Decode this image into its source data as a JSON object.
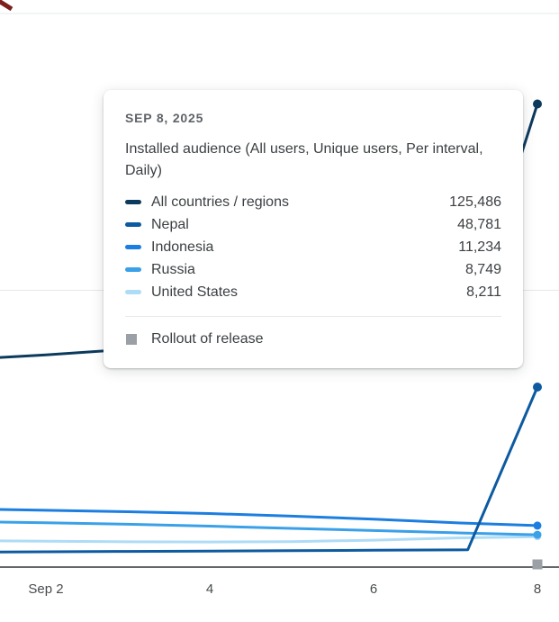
{
  "tooltip": {
    "date": "SEP 8, 2025",
    "metric": "Installed audience (All users, Unique users, Per interval, Daily)",
    "rows": [
      {
        "label": "All countries / regions",
        "value": "125,486",
        "color": "#0c3a5d"
      },
      {
        "label": "Nepal",
        "value": "48,781",
        "color": "#0d5aa0"
      },
      {
        "label": "Indonesia",
        "value": "11,234",
        "color": "#1b7ee0"
      },
      {
        "label": "Russia",
        "value": "8,749",
        "color": "#3aa0e8"
      },
      {
        "label": "United States",
        "value": "8,211",
        "color": "#aedcf6"
      }
    ],
    "annotation": {
      "label": "Rollout of release",
      "color": "#9aa0a6"
    }
  },
  "chart_data": {
    "type": "line",
    "title": "Installed audience (All users, Unique users, Per interval, Daily)",
    "x_axis": {
      "ticks": [
        "Sep 2",
        "4",
        "6",
        "8"
      ],
      "tick_days": [
        2,
        4,
        6,
        8
      ],
      "unit": "date (September 2025)"
    },
    "y_axis": {
      "min": 0,
      "max": 150000,
      "gridlines": [
        0,
        75000,
        150000
      ],
      "labels_visible": false
    },
    "series": [
      {
        "id": "all-countries",
        "name": "All countries / regions",
        "color": "#0c3a5d",
        "end_value": 125486,
        "end_dot": true,
        "dot_r": 5,
        "points": [
          [
            1.44,
            56800
          ],
          [
            2,
            57500
          ],
          [
            3,
            59000
          ],
          [
            4,
            60500
          ],
          [
            5,
            62000
          ],
          [
            6,
            63500
          ],
          [
            7,
            65500
          ],
          [
            7.15,
            66500
          ],
          [
            8,
            125486
          ]
        ]
      },
      {
        "id": "nepal",
        "name": "Nepal",
        "color": "#0d5aa0",
        "end_value": 48781,
        "end_dot": true,
        "dot_r": 5,
        "points": [
          [
            1.44,
            4100
          ],
          [
            2,
            4150
          ],
          [
            3,
            4250
          ],
          [
            4,
            4350
          ],
          [
            5,
            4450
          ],
          [
            6,
            4550
          ],
          [
            7,
            4650
          ],
          [
            7.15,
            4700
          ],
          [
            8,
            48781
          ]
        ]
      },
      {
        "id": "indonesia",
        "name": "Indonesia",
        "color": "#1b7ee0",
        "end_value": 11234,
        "end_dot": true,
        "dot_r": 4.5,
        "points": [
          [
            1.44,
            15600
          ],
          [
            2,
            15400
          ],
          [
            3,
            15000
          ],
          [
            4,
            14500
          ],
          [
            5,
            13800
          ],
          [
            6,
            13000
          ],
          [
            7,
            12000
          ],
          [
            8,
            11234
          ]
        ]
      },
      {
        "id": "russia",
        "name": "Russia",
        "color": "#3aa0e8",
        "end_value": 8749,
        "end_dot": true,
        "dot_r": 4.5,
        "points": [
          [
            1.44,
            12200
          ],
          [
            2,
            12000
          ],
          [
            3,
            11600
          ],
          [
            4,
            11100
          ],
          [
            5,
            10500
          ],
          [
            6,
            9900
          ],
          [
            7,
            9300
          ],
          [
            8,
            8749
          ]
        ]
      },
      {
        "id": "united-states",
        "name": "United States",
        "color": "#aedcf6",
        "end_value": 8211,
        "end_dot": true,
        "dot_r": 4,
        "points": [
          [
            1.44,
            7100
          ],
          [
            2,
            7000
          ],
          [
            3,
            6850
          ],
          [
            4,
            6800
          ],
          [
            5,
            6900
          ],
          [
            6,
            7300
          ],
          [
            7,
            7900
          ],
          [
            8,
            8211
          ]
        ]
      }
    ],
    "annotations": [
      {
        "type": "rollout",
        "label": "Rollout of release",
        "x": 8,
        "color": "#9aa0a6"
      }
    ]
  }
}
